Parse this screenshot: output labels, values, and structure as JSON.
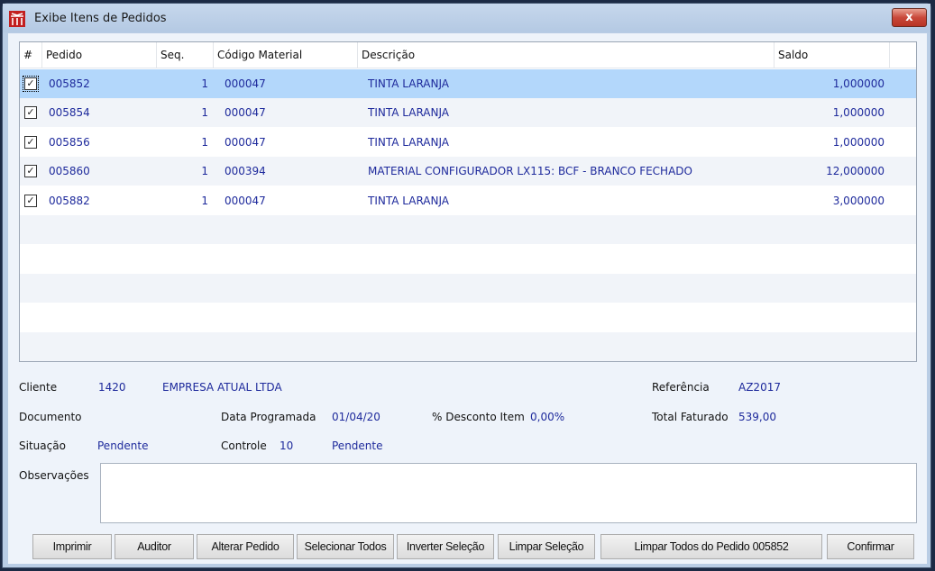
{
  "window": {
    "title": "Exibe Itens de Pedidos",
    "close_label": "x",
    "logo_icon": "app-logo-icon"
  },
  "grid": {
    "columns": [
      "#",
      "Pedido",
      "Seq.",
      "Código Material",
      "Descrição",
      "Saldo"
    ],
    "rows": [
      {
        "checked": true,
        "pedido": "005852",
        "seq": "1",
        "codigo": "000047",
        "descricao": "TINTA LARANJA",
        "saldo": "1,000000",
        "selected": true
      },
      {
        "checked": true,
        "pedido": "005854",
        "seq": "1",
        "codigo": "000047",
        "descricao": "TINTA LARANJA",
        "saldo": "1,000000"
      },
      {
        "checked": true,
        "pedido": "005856",
        "seq": "1",
        "codigo": "000047",
        "descricao": "TINTA LARANJA",
        "saldo": "1,000000"
      },
      {
        "checked": true,
        "pedido": "005860",
        "seq": "1",
        "codigo": "000394",
        "descricao": "MATERIAL CONFIGURADOR LX115: BCF - BRANCO FECHADO",
        "saldo": "12,000000"
      },
      {
        "checked": true,
        "pedido": "005882",
        "seq": "1",
        "codigo": "000047",
        "descricao": "TINTA LARANJA",
        "saldo": "3,000000"
      }
    ]
  },
  "details": {
    "cliente_label": "Cliente",
    "cliente_codigo": "1420",
    "cliente_nome": "EMPRESA ATUAL LTDA",
    "referencia_label": "Referência",
    "referencia": "AZ2017",
    "documento_label": "Documento",
    "data_programada_label": "Data Programada",
    "data_programada": "01/04/20",
    "desconto_label": "% Desconto Item",
    "desconto": "0,00%",
    "total_faturado_label": "Total Faturado",
    "total_faturado": "539,00",
    "situacao_label": "Situação",
    "situacao": "Pendente",
    "controle_label": "Controle",
    "controle": "10",
    "controle_status": "Pendente",
    "observacoes_label": "Observações",
    "observacoes": ""
  },
  "buttons": [
    "Imprimir",
    "Auditor",
    "Alterar Pedido",
    "Selecionar Todos",
    "Inverter Seleção",
    "Limpar Seleção",
    "Limpar Todos do Pedido 005852",
    "Confirmar"
  ]
}
